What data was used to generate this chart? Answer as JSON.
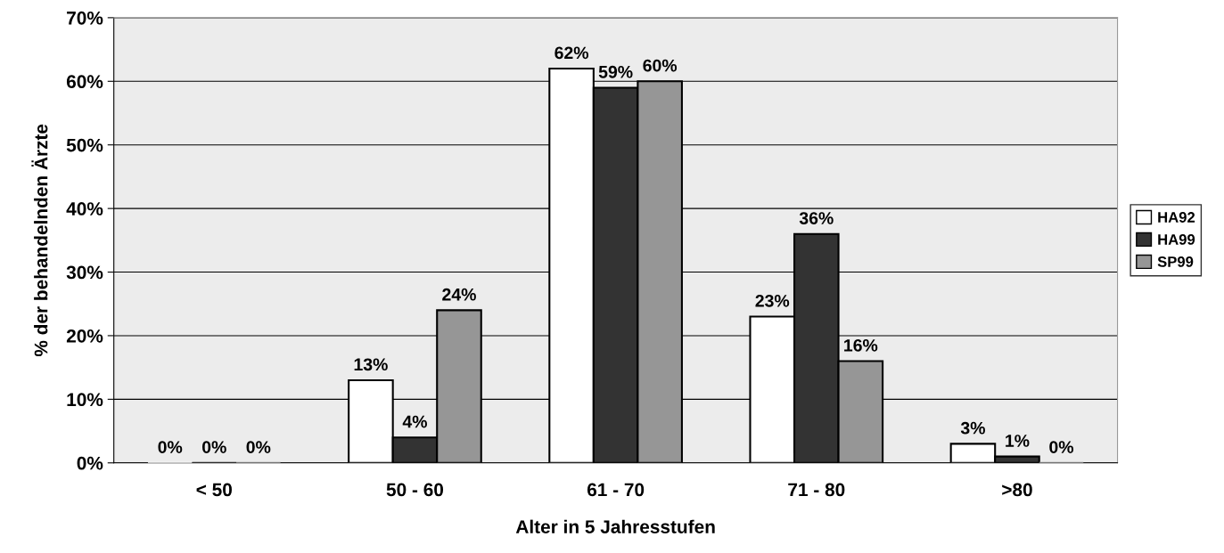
{
  "chart_data": {
    "type": "bar",
    "xlabel": "Alter in 5 Jahresstufen",
    "ylabel": "% der behandelnden Ärzte",
    "categories": [
      "< 50",
      "50 - 60",
      "61 - 70",
      "71 - 80",
      ">80"
    ],
    "series": [
      {
        "name": "HA92",
        "color": "#ffffff",
        "values": [
          0,
          13,
          62,
          23,
          3
        ],
        "value_labels": [
          "0%",
          "13%",
          "62%",
          "23%",
          "3%"
        ]
      },
      {
        "name": "HA99",
        "color": "#333333",
        "values": [
          0,
          4,
          59,
          36,
          1
        ],
        "value_labels": [
          "0%",
          "4%",
          "59%",
          "36%",
          "1%"
        ]
      },
      {
        "name": "SP99",
        "color": "#969696",
        "values": [
          0,
          24,
          60,
          16,
          0
        ],
        "value_labels": [
          "0%",
          "24%",
          "60%",
          "16%",
          "0%"
        ]
      }
    ],
    "ylim": [
      0,
      70
    ],
    "yticks": [
      {
        "value": 0,
        "label": "0%"
      },
      {
        "value": 10,
        "label": "10%"
      },
      {
        "value": 20,
        "label": "20%"
      },
      {
        "value": 30,
        "label": "30%"
      },
      {
        "value": 40,
        "label": "40%"
      },
      {
        "value": 50,
        "label": "50%"
      },
      {
        "value": 60,
        "label": "60%"
      },
      {
        "value": 70,
        "label": "70%"
      }
    ],
    "grid": "y",
    "legend": "right"
  }
}
